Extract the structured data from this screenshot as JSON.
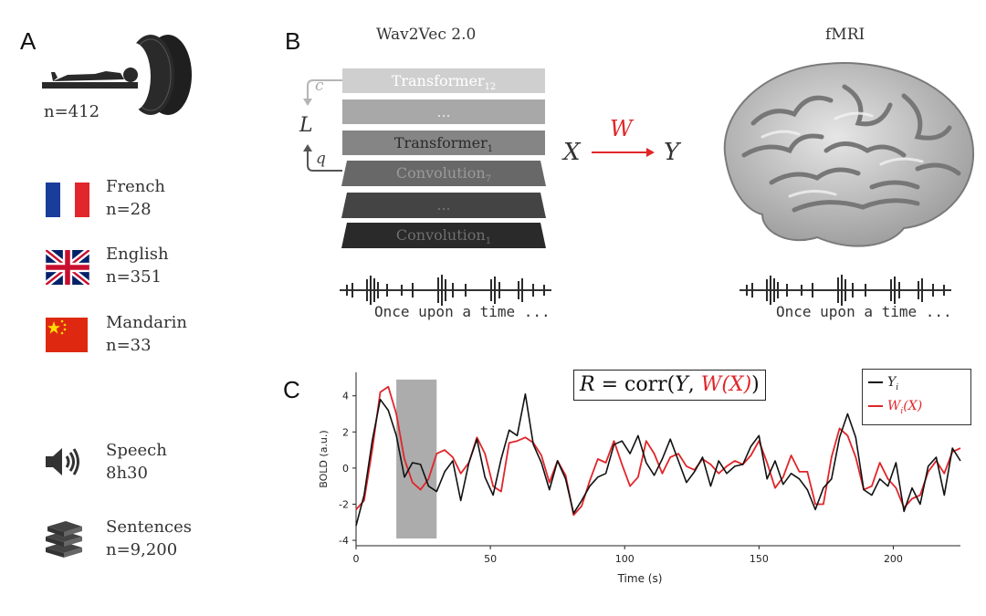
{
  "panels": {
    "a": "A",
    "b": "B",
    "c": "C"
  },
  "cohort": {
    "total_label": "n=412"
  },
  "languages": [
    {
      "name": "French",
      "count": "n=28"
    },
    {
      "name": "English",
      "count": "n=351"
    },
    {
      "name": "Mandarin",
      "count": "n=33"
    }
  ],
  "stimulus": {
    "speech_label": "Speech",
    "speech_value": "8h30",
    "sentences_label": "Sentences",
    "sentences_value": "n=9,200"
  },
  "model": {
    "title": "Wav2Vec 2.0",
    "layers": [
      {
        "name": "Transformer",
        "sub": "12"
      },
      {
        "name": "...",
        "sub": ""
      },
      {
        "name": "Transformer",
        "sub": "1"
      },
      {
        "name": "Convolution",
        "sub": "7"
      },
      {
        "name": "...",
        "sub": ""
      },
      {
        "name": "Convolution",
        "sub": "1"
      }
    ],
    "loss_label": "L",
    "c_label": "c",
    "q_label": "q"
  },
  "mapping": {
    "x": "X",
    "w": "W",
    "y": "Y"
  },
  "brain": {
    "title": "fMRI"
  },
  "captions": {
    "left": "Once upon a time ...",
    "right": "Once upon a time ..."
  },
  "colors": {
    "measured": "#111111",
    "predicted": "#e0262a",
    "highlight": "#9e9e9e"
  },
  "chart_data": {
    "type": "line",
    "equation": {
      "r": "R",
      "eq": " = corr(",
      "y": "Y",
      "comma": ", ",
      "wx": "W(X)",
      "close": ")"
    },
    "xlabel": "Time (s)",
    "ylabel": "BOLD (a.u.)",
    "xlim": [
      0,
      225
    ],
    "ylim": [
      -4.3,
      5.3
    ],
    "xticks": [
      0,
      50,
      100,
      150,
      200
    ],
    "yticks": [
      -4,
      -2,
      0,
      2,
      4
    ],
    "highlight_window": [
      15,
      30
    ],
    "legend": [
      {
        "name": "Y",
        "sub": "i",
        "suffix": ""
      },
      {
        "name": "W",
        "sub": "i",
        "suffix": "(X)"
      }
    ],
    "series": [
      {
        "name": "Y_i",
        "x": [
          0,
          3,
          6,
          9,
          12,
          15,
          18,
          21,
          24,
          27,
          30,
          33,
          36,
          39,
          42,
          45,
          48,
          51,
          54,
          57,
          60,
          63,
          66,
          69,
          72,
          75,
          78,
          81,
          84,
          87,
          90,
          93,
          96,
          99,
          102,
          105,
          108,
          111,
          114,
          117,
          120,
          123,
          126,
          129,
          132,
          135,
          138,
          141,
          144,
          147,
          150,
          153,
          156,
          159,
          162,
          165,
          168,
          171,
          174,
          177,
          180,
          183,
          186,
          189,
          192,
          195,
          198,
          201,
          204,
          207,
          210,
          213,
          216,
          219,
          222,
          225
        ],
        "values": [
          -3.2,
          -1.5,
          1.5,
          3.8,
          3.2,
          1.8,
          -0.5,
          0.3,
          0.2,
          -1.0,
          -1.3,
          -0.2,
          0.4,
          -1.8,
          0.3,
          1.6,
          -0.5,
          -1.5,
          0.5,
          2.1,
          1.8,
          4.1,
          1.3,
          0.3,
          -1.2,
          0.4,
          -0.6,
          -2.5,
          -1.8,
          -1.0,
          -0.5,
          -0.3,
          1.3,
          1.5,
          0.8,
          1.8,
          0.3,
          -0.4,
          0.5,
          1.6,
          0.4,
          -0.8,
          -0.2,
          0.6,
          -1.0,
          0.4,
          -0.3,
          0.1,
          0.2,
          1.2,
          1.8,
          -0.6,
          0.4,
          -0.9,
          -0.3,
          -0.6,
          -1.2,
          -2.3,
          -1.1,
          -0.6,
          1.7,
          3.0,
          1.7,
          -1.2,
          -1.5,
          -0.6,
          -1.0,
          0.3,
          -2.4,
          -1.1,
          -2.0,
          0.1,
          0.6,
          -1.5,
          1.1,
          0.4
        ]
      },
      {
        "name": "W_i(X)",
        "x": [
          0,
          3,
          6,
          9,
          12,
          15,
          18,
          21,
          24,
          27,
          30,
          33,
          36,
          39,
          42,
          45,
          48,
          51,
          54,
          57,
          60,
          63,
          66,
          69,
          72,
          75,
          78,
          81,
          84,
          87,
          90,
          93,
          96,
          99,
          102,
          105,
          108,
          111,
          114,
          117,
          120,
          123,
          126,
          129,
          132,
          135,
          138,
          141,
          144,
          147,
          150,
          153,
          156,
          159,
          162,
          165,
          168,
          171,
          174,
          177,
          180,
          183,
          186,
          189,
          192,
          195,
          198,
          201,
          204,
          207,
          210,
          213,
          216,
          219,
          222,
          225
        ],
        "values": [
          -2.3,
          -1.8,
          1.0,
          4.2,
          4.5,
          3.0,
          0.5,
          -0.8,
          -1.2,
          -0.6,
          0.8,
          1.0,
          0.6,
          -0.3,
          0.3,
          1.7,
          0.8,
          -1.0,
          -1.3,
          1.4,
          1.5,
          1.7,
          1.4,
          0.7,
          -0.8,
          0.4,
          -0.4,
          -2.6,
          -2.1,
          -0.7,
          0.5,
          0.3,
          1.5,
          0.2,
          -1.0,
          -0.5,
          1.5,
          0.8,
          -0.3,
          0.6,
          0.8,
          0.1,
          -0.1,
          0.5,
          0.2,
          -0.3,
          0.1,
          0.4,
          0.2,
          0.7,
          1.5,
          0.3,
          -1.1,
          -0.5,
          0.7,
          -0.2,
          -0.2,
          -2.0,
          -2.0,
          0.6,
          2.2,
          1.8,
          0.6,
          -1.2,
          -1.0,
          0.3,
          -0.6,
          -1.1,
          -2.2,
          -1.7,
          -1.5,
          -0.2,
          0.4,
          -0.3,
          0.9,
          1.1
        ]
      }
    ]
  }
}
